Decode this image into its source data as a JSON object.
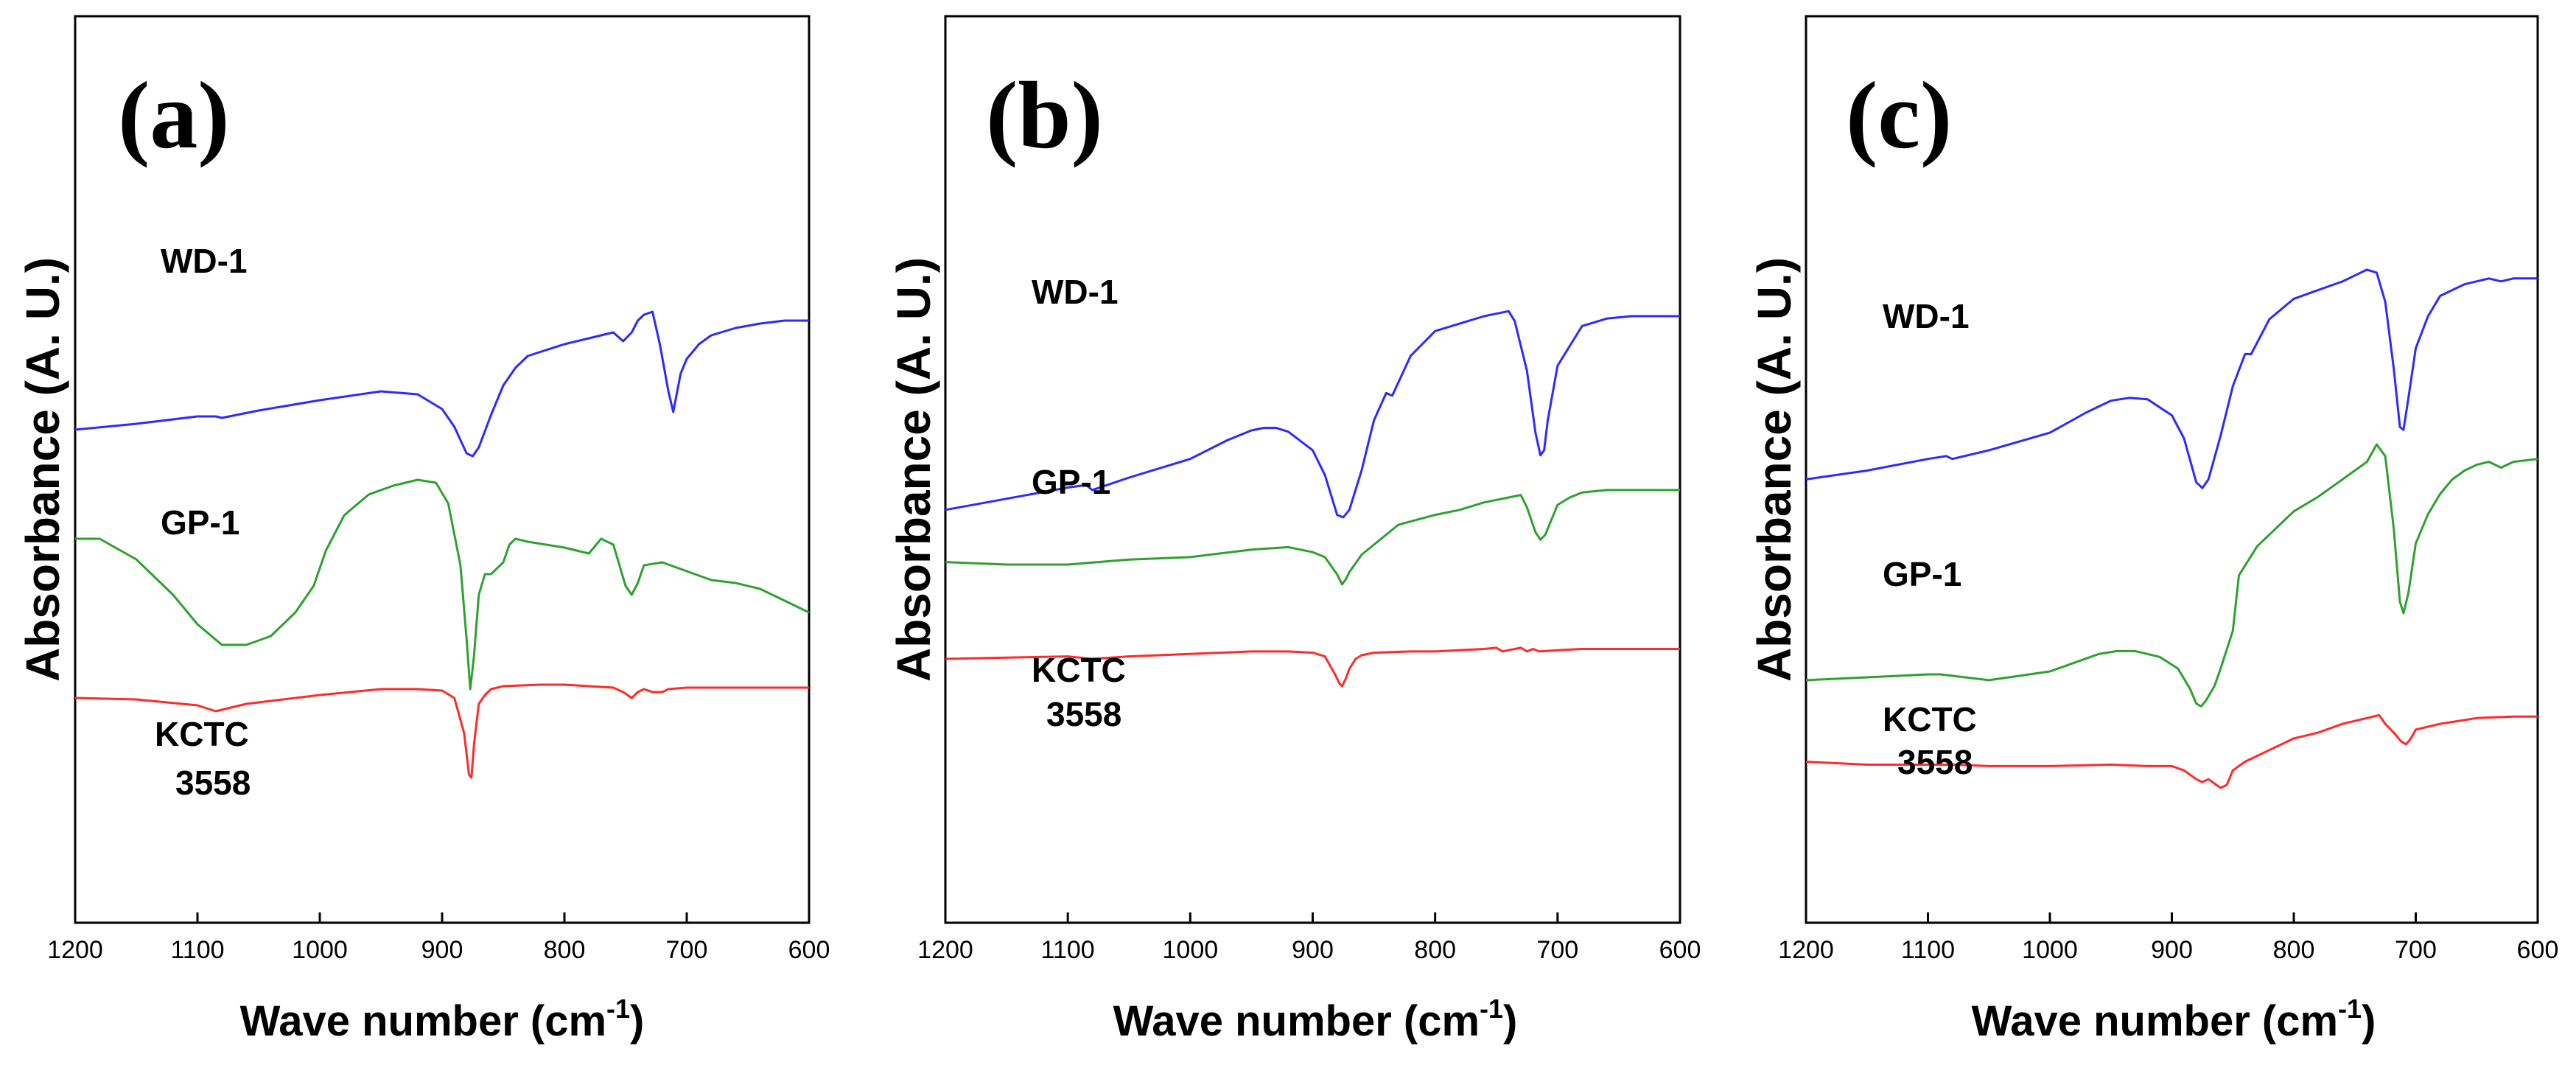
{
  "chart_data": [
    {
      "type": "line",
      "panel_label": "(a)",
      "ylabel": "Absorbance (A. U.)",
      "xlabel": "Wave number (cm-1)",
      "xlabel_parts": {
        "main": "Wave number (cm",
        "sup": "-1",
        "close": ")"
      },
      "xlim": [
        1200,
        600
      ],
      "xticks": [
        "1200",
        "1100",
        "1000",
        "900",
        "800",
        "700",
        "600"
      ],
      "grid": false,
      "series": [
        {
          "name": "WD-1",
          "label_lines": [
            "WD-1"
          ],
          "color": "#2b2bff",
          "x": [
            1200,
            1150,
            1100,
            1085,
            1080,
            1050,
            1000,
            950,
            920,
            900,
            890,
            880,
            875,
            870,
            860,
            850,
            845,
            840,
            830,
            800,
            780,
            760,
            752,
            745,
            740,
            735,
            728,
            722,
            715,
            711,
            705,
            700,
            690,
            680,
            660,
            640,
            620,
            600
          ],
          "y": [
            0.51,
            0.53,
            0.555,
            0.555,
            0.55,
            0.575,
            0.61,
            0.64,
            0.63,
            0.58,
            0.52,
            0.43,
            0.42,
            0.45,
            0.56,
            0.66,
            0.69,
            0.72,
            0.76,
            0.8,
            0.82,
            0.84,
            0.81,
            0.84,
            0.88,
            0.9,
            0.91,
            0.8,
            0.64,
            0.57,
            0.7,
            0.75,
            0.8,
            0.83,
            0.855,
            0.87,
            0.88,
            0.88
          ]
        },
        {
          "name": "GP-1",
          "label_lines": [
            "GP-1"
          ],
          "color": "#2ea12e",
          "x": [
            1200,
            1180,
            1150,
            1120,
            1100,
            1080,
            1060,
            1040,
            1020,
            1005,
            995,
            980,
            960,
            940,
            920,
            905,
            895,
            885,
            880,
            877,
            874,
            870,
            865,
            860,
            850,
            845,
            840,
            830,
            800,
            790,
            780,
            770,
            760,
            755,
            750,
            745,
            740,
            735,
            720,
            700,
            680,
            660,
            640,
            620,
            600
          ],
          "y": [
            0.14,
            0.14,
            0.07,
            -0.05,
            -0.15,
            -0.22,
            -0.22,
            -0.19,
            -0.11,
            -0.02,
            0.1,
            0.22,
            0.29,
            0.32,
            0.34,
            0.33,
            0.26,
            0.05,
            -0.2,
            -0.37,
            -0.26,
            -0.05,
            0.02,
            0.02,
            0.06,
            0.12,
            0.14,
            0.13,
            0.11,
            0.1,
            0.09,
            0.14,
            0.12,
            0.05,
            -0.02,
            -0.05,
            -0.01,
            0.05,
            0.06,
            0.03,
            0.0,
            -0.01,
            -0.03,
            -0.07,
            -0.11
          ]
        },
        {
          "name": "KCTC 3558",
          "label_lines": [
            "KCTC",
            "3558"
          ],
          "color": "#ff2a2a",
          "x": [
            1200,
            1150,
            1100,
            1085,
            1080,
            1060,
            1000,
            950,
            920,
            900,
            890,
            882,
            878,
            876,
            874,
            870,
            865,
            860,
            850,
            820,
            800,
            760,
            752,
            745,
            740,
            735,
            728,
            720,
            715,
            700,
            680,
            650,
            620,
            600
          ],
          "y": [
            -0.4,
            -0.405,
            -0.425,
            -0.445,
            -0.44,
            -0.42,
            -0.39,
            -0.37,
            -0.37,
            -0.375,
            -0.4,
            -0.52,
            -0.66,
            -0.67,
            -0.56,
            -0.42,
            -0.39,
            -0.37,
            -0.36,
            -0.355,
            -0.355,
            -0.365,
            -0.38,
            -0.4,
            -0.38,
            -0.37,
            -0.38,
            -0.38,
            -0.37,
            -0.365,
            -0.365,
            -0.365,
            -0.365,
            -0.365
          ]
        }
      ]
    },
    {
      "type": "line",
      "panel_label": "(b)",
      "ylabel": "Absorbance (A. U.)",
      "xlabel": "Wave number (cm-1)",
      "xlabel_parts": {
        "main": "Wave number (cm",
        "sup": "-1",
        "close": ")"
      },
      "xlim": [
        1200,
        600
      ],
      "xticks": [
        "1200",
        "1100",
        "1000",
        "900",
        "800",
        "700",
        "600"
      ],
      "grid": false,
      "series": [
        {
          "name": "WD-1",
          "label_lines": [
            "WD-1"
          ],
          "color": "#2b2bff",
          "x": [
            1200,
            1150,
            1100,
            1085,
            1080,
            1050,
            1000,
            970,
            950,
            940,
            930,
            920,
            900,
            890,
            880,
            875,
            870,
            860,
            850,
            840,
            835,
            820,
            800,
            780,
            760,
            740,
            735,
            725,
            718,
            714,
            711,
            708,
            700,
            690,
            680,
            660,
            640,
            620,
            600
          ],
          "y": [
            0.14,
            0.185,
            0.23,
            0.24,
            0.22,
            0.27,
            0.345,
            0.42,
            0.46,
            0.47,
            0.47,
            0.455,
            0.38,
            0.28,
            0.12,
            0.11,
            0.14,
            0.3,
            0.5,
            0.61,
            0.6,
            0.76,
            0.86,
            0.89,
            0.92,
            0.94,
            0.9,
            0.7,
            0.45,
            0.36,
            0.38,
            0.5,
            0.72,
            0.8,
            0.88,
            0.91,
            0.92,
            0.92,
            0.92
          ]
        },
        {
          "name": "GP-1",
          "label_lines": [
            "GP-1"
          ],
          "color": "#2ea12e",
          "x": [
            1200,
            1150,
            1100,
            1050,
            1000,
            950,
            920,
            900,
            890,
            880,
            876,
            873,
            870,
            860,
            850,
            840,
            830,
            800,
            780,
            760,
            740,
            730,
            725,
            718,
            714,
            710,
            700,
            690,
            680,
            660,
            640,
            620,
            600
          ],
          "y": [
            -0.07,
            -0.08,
            -0.08,
            -0.06,
            -0.05,
            -0.02,
            -0.01,
            -0.03,
            -0.05,
            -0.12,
            -0.16,
            -0.14,
            -0.11,
            -0.04,
            0.0,
            0.04,
            0.08,
            0.12,
            0.14,
            0.17,
            0.19,
            0.2,
            0.15,
            0.05,
            0.02,
            0.04,
            0.16,
            0.19,
            0.21,
            0.22,
            0.22,
            0.22,
            0.22
          ]
        },
        {
          "name": "KCTC 3558",
          "label_lines": [
            "KCTC",
            "3558"
          ],
          "color": "#ff2a2a",
          "x": [
            1200,
            1150,
            1100,
            1080,
            1050,
            1000,
            950,
            920,
            900,
            890,
            882,
            878,
            876,
            873,
            870,
            865,
            860,
            850,
            820,
            800,
            760,
            750,
            745,
            740,
            730,
            725,
            720,
            715,
            700,
            680,
            650,
            620,
            600
          ],
          "y": [
            -0.46,
            -0.455,
            -0.45,
            -0.46,
            -0.45,
            -0.44,
            -0.43,
            -0.43,
            -0.435,
            -0.45,
            -0.52,
            -0.56,
            -0.57,
            -0.54,
            -0.5,
            -0.46,
            -0.445,
            -0.435,
            -0.43,
            -0.43,
            -0.42,
            -0.415,
            -0.43,
            -0.425,
            -0.415,
            -0.43,
            -0.42,
            -0.43,
            -0.425,
            -0.42,
            -0.42,
            -0.42,
            -0.42
          ]
        }
      ]
    },
    {
      "type": "line",
      "panel_label": "(c)",
      "ylabel": "Absorbance (A. U.)",
      "xlabel": "Wave number (cm-1)",
      "xlabel_parts": {
        "main": "Wave number (cm",
        "sup": "-1",
        "close": ")"
      },
      "xlim": [
        1200,
        600
      ],
      "xticks": [
        "1200",
        "1100",
        "1000",
        "900",
        "800",
        "700",
        "600"
      ],
      "grid": false,
      "series": [
        {
          "name": "WD-1",
          "label_lines": [
            "WD-1"
          ],
          "color": "#2b2bff",
          "x": [
            1200,
            1150,
            1100,
            1085,
            1080,
            1050,
            1000,
            970,
            950,
            935,
            920,
            900,
            890,
            880,
            875,
            870,
            860,
            850,
            840,
            835,
            820,
            800,
            780,
            760,
            740,
            732,
            725,
            718,
            713,
            710,
            706,
            700,
            690,
            680,
            660,
            640,
            630,
            620,
            600
          ],
          "y": [
            0.27,
            0.3,
            0.34,
            0.35,
            0.34,
            0.37,
            0.43,
            0.5,
            0.54,
            0.55,
            0.545,
            0.49,
            0.41,
            0.26,
            0.24,
            0.27,
            0.42,
            0.59,
            0.7,
            0.7,
            0.82,
            0.89,
            0.92,
            0.95,
            0.99,
            0.98,
            0.88,
            0.65,
            0.45,
            0.44,
            0.55,
            0.72,
            0.83,
            0.9,
            0.94,
            0.96,
            0.95,
            0.96,
            0.96
          ]
        },
        {
          "name": "GP-1",
          "label_lines": [
            "GP-1"
          ],
          "color": "#2ea12e",
          "x": [
            1200,
            1150,
            1100,
            1090,
            1050,
            1000,
            960,
            945,
            930,
            910,
            895,
            885,
            880,
            876,
            872,
            865,
            860,
            850,
            845,
            830,
            800,
            780,
            760,
            740,
            732,
            725,
            718,
            713,
            710,
            706,
            700,
            690,
            680,
            670,
            660,
            650,
            640,
            630,
            620,
            600
          ],
          "y": [
            -0.42,
            -0.41,
            -0.4,
            -0.4,
            -0.42,
            -0.39,
            -0.33,
            -0.32,
            -0.32,
            -0.34,
            -0.38,
            -0.45,
            -0.5,
            -0.51,
            -0.49,
            -0.44,
            -0.38,
            -0.25,
            -0.06,
            0.04,
            0.16,
            0.21,
            0.27,
            0.33,
            0.39,
            0.35,
            0.1,
            -0.15,
            -0.19,
            -0.12,
            0.05,
            0.15,
            0.22,
            0.27,
            0.3,
            0.32,
            0.33,
            0.31,
            0.33,
            0.34
          ]
        },
        {
          "name": "KCTC 3558",
          "label_lines": [
            "KCTC",
            "3558"
          ],
          "color": "#ff2a2a",
          "x": [
            1200,
            1150,
            1100,
            1080,
            1050,
            1000,
            950,
            920,
            900,
            890,
            880,
            875,
            870,
            865,
            860,
            855,
            850,
            840,
            820,
            800,
            780,
            760,
            740,
            730,
            725,
            718,
            712,
            708,
            704,
            700,
            680,
            650,
            620,
            600
          ],
          "y": [
            -0.7,
            -0.71,
            -0.71,
            -0.71,
            -0.715,
            -0.715,
            -0.71,
            -0.715,
            -0.715,
            -0.73,
            -0.76,
            -0.77,
            -0.76,
            -0.775,
            -0.79,
            -0.78,
            -0.73,
            -0.7,
            -0.66,
            -0.62,
            -0.6,
            -0.57,
            -0.55,
            -0.54,
            -0.57,
            -0.6,
            -0.63,
            -0.64,
            -0.62,
            -0.59,
            -0.57,
            -0.55,
            -0.545,
            -0.545
          ]
        }
      ]
    }
  ]
}
